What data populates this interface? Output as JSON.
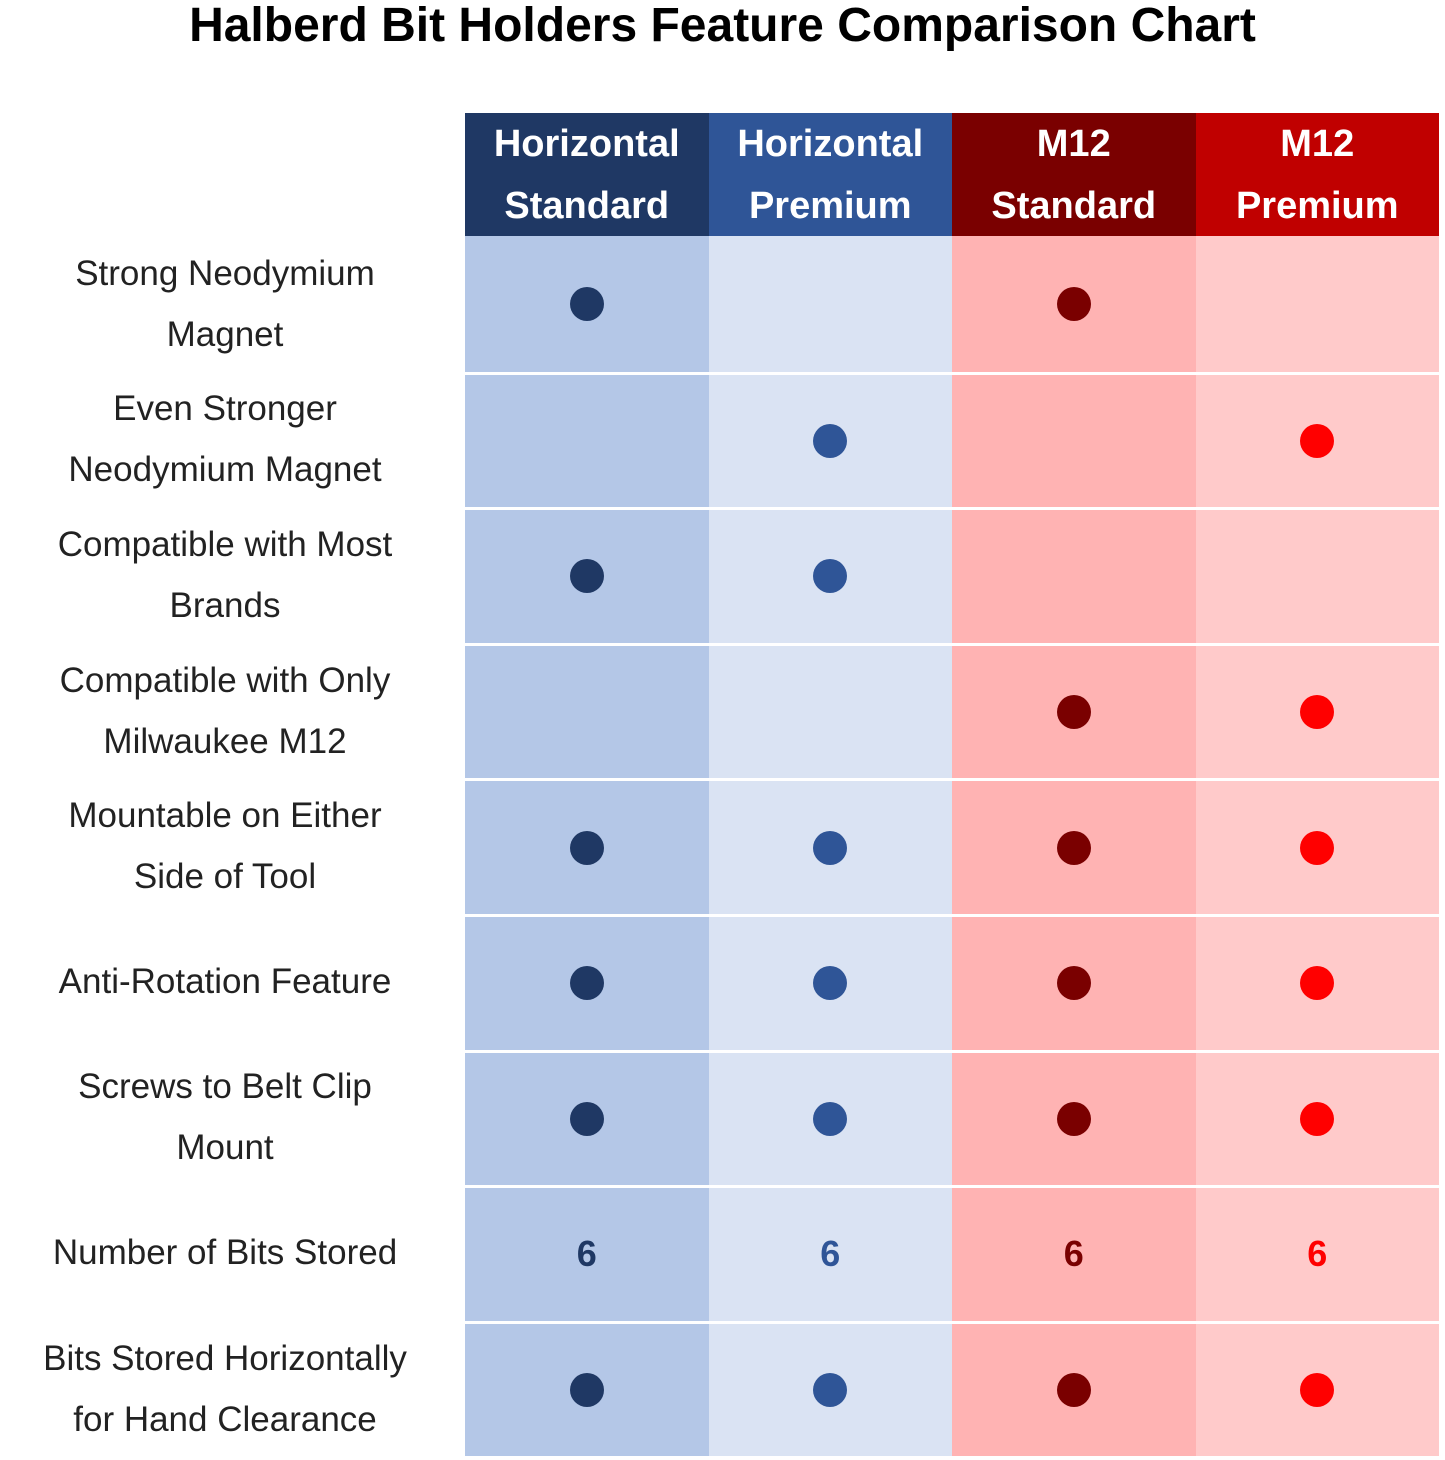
{
  "title": "Halberd Bit Holders Feature Comparison Chart",
  "table": {
    "columns": [
      {
        "label": [
          "Horizontal",
          "Standard"
        ],
        "header_color": "#1f3864",
        "body_color": "#b4c7e7",
        "mark_color": "#1f3864"
      },
      {
        "label": [
          "Horizontal",
          "Premium"
        ],
        "header_color": "#2f5597",
        "body_color": "#dae3f3",
        "mark_color": "#2f5597"
      },
      {
        "label": [
          "M12",
          "Standard"
        ],
        "header_color": "#7a0000",
        "body_color": "#ffb3b3",
        "mark_color": "#7a0000"
      },
      {
        "label": [
          "M12",
          "Premium"
        ],
        "header_color": "#c00000",
        "body_color": "#ffcaca",
        "mark_color": "#ff0000"
      }
    ],
    "rows": [
      {
        "label": [
          "Strong Neodymium",
          "Magnet"
        ],
        "cells": [
          true,
          false,
          true,
          false
        ]
      },
      {
        "label": [
          "Even Stronger",
          "Neodymium Magnet"
        ],
        "cells": [
          false,
          true,
          false,
          true
        ]
      },
      {
        "label": [
          "Compatible with Most",
          "Brands"
        ],
        "cells": [
          true,
          true,
          false,
          false
        ]
      },
      {
        "label": [
          "Compatible with Only",
          "Milwaukee M12"
        ],
        "cells": [
          false,
          false,
          true,
          true
        ]
      },
      {
        "label": [
          "Mountable on Either",
          "Side of Tool"
        ],
        "cells": [
          true,
          true,
          true,
          true
        ]
      },
      {
        "label": [
          "Anti-Rotation Feature"
        ],
        "cells": [
          true,
          true,
          true,
          true
        ]
      },
      {
        "label": [
          "Screws to Belt Clip",
          "Mount"
        ],
        "cells": [
          true,
          true,
          true,
          true
        ]
      },
      {
        "label": [
          "Number of Bits Stored"
        ],
        "cells": [
          6,
          6,
          6,
          6
        ]
      },
      {
        "label": [
          "Bits Stored Horizontally",
          "for Hand Clearance"
        ],
        "cells": [
          true,
          true,
          true,
          true
        ]
      }
    ]
  }
}
